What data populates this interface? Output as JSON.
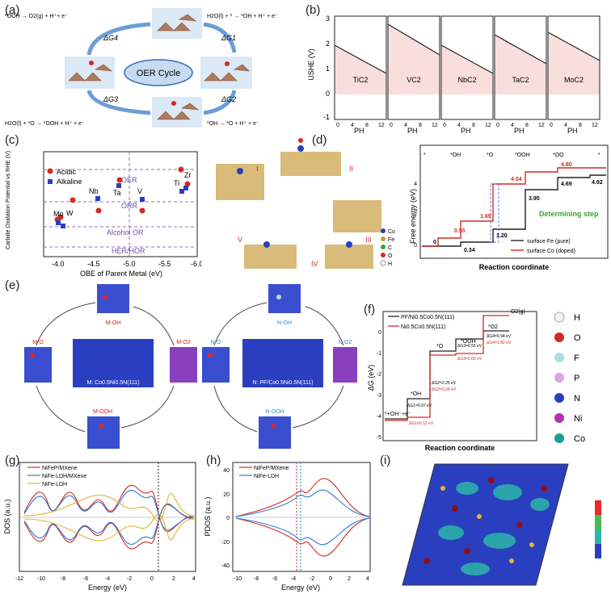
{
  "panels": {
    "a": {
      "label": "(a)",
      "cycle_label": "OER Cycle",
      "eq_top_left": "*OOH → O2(g) + H⁺+ e⁻",
      "eq_top_right": "H2O(l) + * → *OH + H⁺ + e⁻",
      "eq_bottom_left": "H2O(l) + *O → *OOH + H⁺ + e⁻",
      "eq_bottom_right": "*OH → *O + H⁺ + e⁻",
      "dg1": "ΔG1",
      "dg2": "ΔG2",
      "dg3": "ΔG3",
      "dg4": "ΔG4"
    },
    "b": {
      "label": "(b)",
      "ylabel": "USHE (V)",
      "xlabel": "PH",
      "materials": [
        "TiC2",
        "VC2",
        "NbC2",
        "TaC2",
        "MoC2"
      ],
      "yticks": [
        "3",
        "2",
        "1",
        "0",
        "-1"
      ],
      "xticks": [
        "0",
        "4",
        "8",
        "12"
      ]
    },
    "c": {
      "label": "(c)",
      "ylabel": "Carbide Oxidation Potential vs RHE (V)",
      "xlabel": "OBE of Parent Metal (eV)",
      "legend": [
        "Acidic",
        "Alkaline"
      ],
      "ref_lines": [
        "OER",
        "ORR",
        "Alcohol OR",
        "HER/HOR"
      ],
      "xticks": [
        "-4.0",
        "-4.5",
        "-5.0",
        "-5.5",
        "-6.0"
      ],
      "point_labels": [
        "Mo",
        "W",
        "Nb",
        "Ta",
        "V",
        "Ti",
        "Zr"
      ]
    },
    "d": {
      "label": "(d)",
      "ylabel": "Free energy (eV)",
      "xlabel": "Reaction coordinate",
      "steps": [
        "I",
        "II",
        "III",
        "IV",
        "V"
      ],
      "species": [
        "*",
        "*OH",
        "*O",
        "*OOH",
        "*OO",
        "*"
      ],
      "legend": [
        "surface Fe (pure)",
        "surface Co (doped)"
      ],
      "determining": "Determining step",
      "black_values": [
        "0",
        "0.34",
        "1.20",
        "3.95",
        "4.69",
        "4.92"
      ],
      "red_values": [
        "0.55",
        "1.69",
        "4.04",
        "4.80"
      ],
      "atoms": [
        "Co",
        "Fe",
        "C",
        "O",
        "H"
      ],
      "yticks": [
        "0",
        "2",
        "4"
      ]
    },
    "e": {
      "label": "(e)",
      "left_center": "M: Co0.5Ni0.5N(111)",
      "right_center": "N: PF/Co0.5Ni0.5N(111)",
      "left_species": [
        "M-OH",
        "M-O",
        "M-OOH",
        "M-O2"
      ],
      "right_species": [
        "N-OH",
        "N-O",
        "N-OOH",
        "N-O2"
      ]
    },
    "f": {
      "label": "(f)",
      "ylabel": "ΔG (eV)",
      "xlabel": "Reaction coordinate",
      "legend": [
        "PF/Ni0.5Co0.5N(111)",
        "Ni0.5Co0.5N(111)"
      ],
      "species": [
        "*+OH⁻+e⁻",
        "*OH",
        "*O",
        "*OOH",
        "*O2",
        "O2(g)"
      ],
      "black_labels": [
        "ΔG1=0.97 eV",
        "ΔG2=2.25 eV",
        "ΔG3=0.55 eV",
        "ΔG4=0.94 eV"
      ],
      "red_labels": [
        "ΔG1=0.12 eV",
        "ΔG2=3.04 eV",
        "ΔG3=0.05 eV",
        "ΔG4=1.82 eV"
      ],
      "yticks": [
        "0",
        "-1",
        "-2",
        "-3",
        "-4",
        "-5"
      ],
      "atoms": [
        "H",
        "O",
        "F",
        "P",
        "N",
        "Ni",
        "Co"
      ],
      "atom_colors": [
        "#f2f2f2",
        "#d42a22",
        "#a8e0e0",
        "#d7a7e0",
        "#2a3fbf",
        "#b431b4",
        "#1a9e8e"
      ]
    },
    "g": {
      "label": "(g)",
      "ylabel": "DOS (a.u.)",
      "xlabel": "Energy (eV)",
      "legend": [
        "NiFeP/MXene",
        "NiFe-LDH/MXene",
        "NiFe-LDH"
      ],
      "xticks": [
        "-12",
        "-10",
        "-8",
        "-6",
        "-4",
        "-2",
        "0",
        "2",
        "4"
      ]
    },
    "h": {
      "label": "(h)",
      "ylabel": "PDOS (a.u.)",
      "xlabel": "Energy (eV)",
      "legend": [
        "NiFeP/MXene",
        "NiFe-LDH"
      ],
      "xticks": [
        "-10",
        "-8",
        "-6",
        "-4",
        "-2",
        "0",
        "2",
        "4"
      ],
      "yticks": [
        "40",
        "20",
        "0",
        "-20",
        "-40"
      ]
    },
    "i": {
      "label": "(i)"
    }
  }
}
